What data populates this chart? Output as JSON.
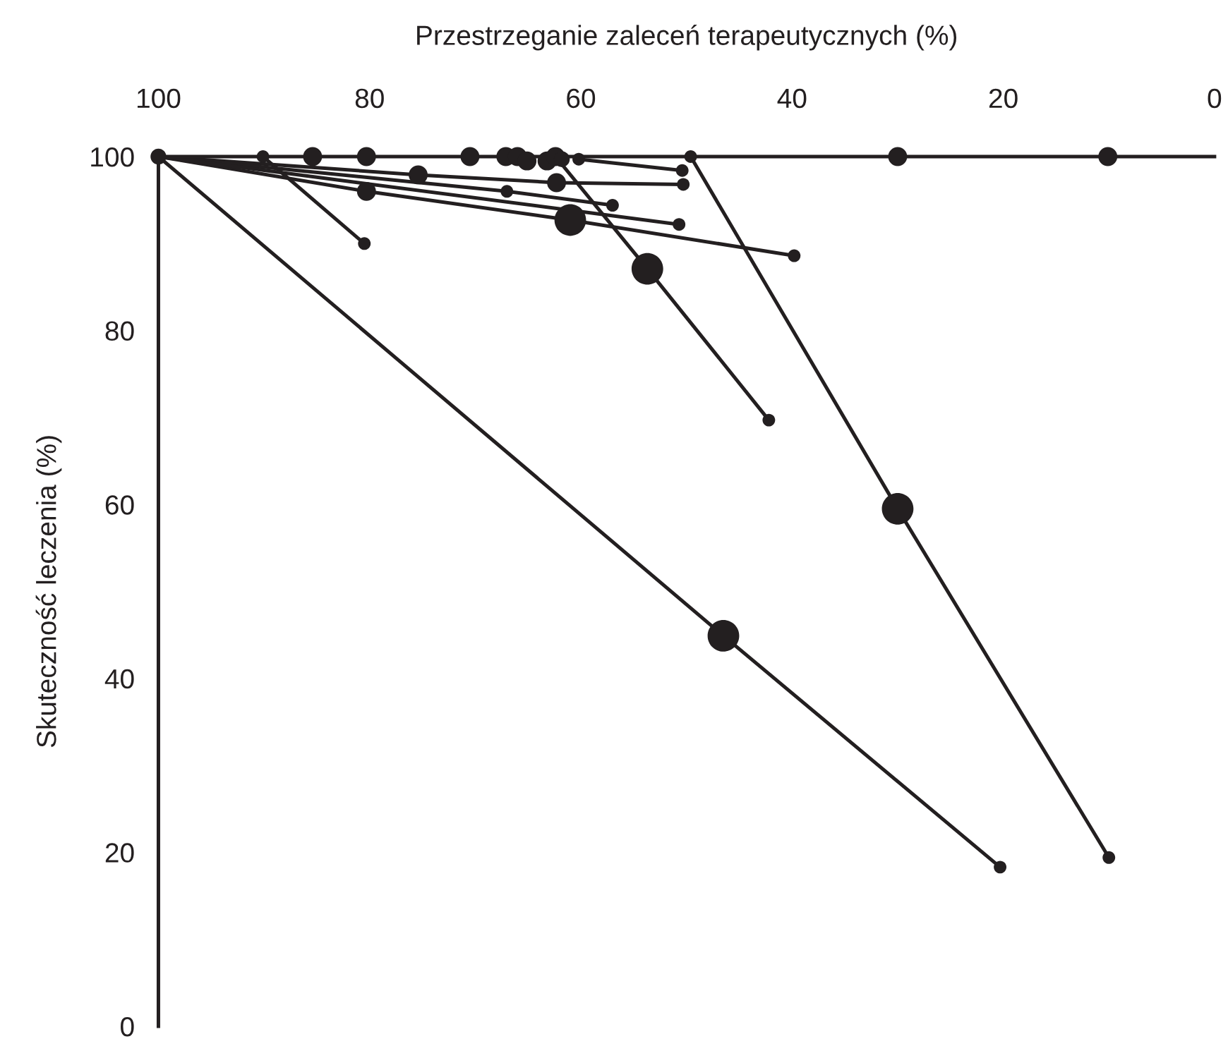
{
  "chart_data": {
    "type": "line",
    "xlabel": "Przestrzeganie zaleceń terapeutycznych (%)",
    "ylabel": "Skuteczność leczenia (%)",
    "xlim": [
      100,
      0
    ],
    "xticks": [
      100,
      80,
      60,
      40,
      20,
      0
    ],
    "ylim": [
      0,
      100
    ],
    "yticks": [
      0,
      20,
      40,
      60,
      80,
      100
    ],
    "grid": false,
    "legend": false,
    "line_style": "solid",
    "series": [
      {
        "color": "#231f20",
        "marker": "none",
        "x": [
          90.1,
          80.5
        ],
        "values": [
          100,
          90.0
        ]
      },
      {
        "color": "#231f20",
        "marker": "none",
        "x": [
          60.2,
          50.4
        ],
        "values": [
          99.7,
          98.4
        ]
      },
      {
        "color": "#231f20",
        "marker": "none",
        "x": [
          100,
          75.4,
          62.3,
          50.3
        ],
        "values": [
          100,
          97.9,
          97.0,
          96.8
        ]
      },
      {
        "color": "#231f20",
        "marker": "none",
        "x": [
          100,
          80.3,
          61.0,
          39.8
        ],
        "values": [
          100,
          96.0,
          92.7,
          88.6
        ]
      },
      {
        "color": "#231f20",
        "marker": "none",
        "x": [
          100,
          67.0,
          57.0
        ],
        "values": [
          100,
          96.0,
          94.4
        ]
      },
      {
        "color": "#231f20",
        "marker": "none",
        "x": [
          100,
          50.7
        ],
        "values": [
          100,
          92.2
        ]
      },
      {
        "color": "#231f20",
        "marker": "none",
        "x": [
          62.4,
          53.7,
          42.2
        ],
        "values": [
          100,
          87.1,
          69.7
        ]
      },
      {
        "color": "#231f20",
        "marker": "none",
        "x": [
          49.6,
          30.0,
          10.0
        ],
        "values": [
          100,
          59.5,
          19.4
        ]
      },
      {
        "color": "#231f20",
        "marker": "none",
        "x": [
          100,
          46.5,
          20.3
        ],
        "values": [
          100,
          44.9,
          18.3
        ]
      },
      {
        "type": "bubble",
        "color": "#231f20",
        "marker": "circle",
        "x": [
          100,
          90.1,
          85.4,
          80.3,
          70.5,
          67.1,
          66.0,
          65.1,
          63.2,
          62.4,
          61.8,
          60.2,
          49.6,
          30.0,
          10.1,
          50.4,
          75.4,
          62.3,
          50.3,
          80.3,
          61.0,
          39.8,
          67.0,
          57.0,
          50.7,
          80.5,
          53.7,
          42.2,
          30.0,
          10.0,
          46.5,
          20.3
        ],
        "values": [
          100,
          100,
          100,
          100,
          100,
          100,
          100,
          99.5,
          99.5,
          100,
          99.7,
          99.7,
          100,
          100,
          100,
          98.4,
          97.9,
          97.0,
          96.8,
          96.0,
          92.7,
          88.6,
          96.0,
          94.4,
          92.2,
          90.0,
          87.1,
          69.7,
          59.5,
          19.4,
          44.9,
          18.3
        ],
        "sizes": [
          0.25,
          0.16,
          0.36,
          0.36,
          0.36,
          0.36,
          0.36,
          0.36,
          0.36,
          0.36,
          0.25,
          0.16,
          0.16,
          0.36,
          0.36,
          0.16,
          0.36,
          0.36,
          0.16,
          0.36,
          1,
          0.16,
          0.16,
          0.16,
          0.16,
          0.16,
          1,
          0.16,
          1,
          0.16,
          1,
          0.16
        ]
      }
    ]
  }
}
